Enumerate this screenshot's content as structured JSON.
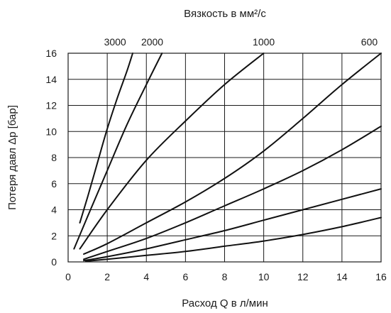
{
  "chart_data": {
    "type": "line",
    "title": "Вязкость в мм²/с",
    "xlabel": "Расход Q в л/мин",
    "ylabel": "Потеря давл Δр [бар]",
    "xlim": [
      0,
      16
    ],
    "ylim": [
      0,
      16
    ],
    "grid": true,
    "x_ticks": [
      "0",
      "2",
      "4",
      "6",
      "8",
      "10",
      "12",
      "14",
      "16"
    ],
    "y_ticks": [
      "0",
      "2",
      "4",
      "6",
      "8",
      "10",
      "12",
      "14",
      "16"
    ],
    "top_labels": [
      {
        "text": "3000",
        "x": 2.4
      },
      {
        "text": "2000",
        "x": 4.3
      },
      {
        "text": "1000",
        "x": 10.0
      },
      {
        "text": "600",
        "x": 15.4
      }
    ],
    "series": [
      {
        "points": [
          [
            0.6,
            3.0
          ],
          [
            1.0,
            5.0
          ],
          [
            1.5,
            7.6
          ],
          [
            2.0,
            10.2
          ],
          [
            2.5,
            12.5
          ],
          [
            3.0,
            14.6
          ],
          [
            3.3,
            16.0
          ]
        ]
      },
      {
        "points": [
          [
            0.3,
            1.0
          ],
          [
            1.0,
            3.5
          ],
          [
            2.0,
            7.0
          ],
          [
            3.0,
            10.5
          ],
          [
            4.0,
            13.6
          ],
          [
            4.8,
            16.0
          ]
        ]
      },
      {
        "points": [
          [
            0.6,
            1.0
          ],
          [
            2.0,
            4.0
          ],
          [
            4.0,
            7.8
          ],
          [
            6.0,
            10.8
          ],
          [
            8.0,
            13.6
          ],
          [
            10.0,
            16.0
          ]
        ]
      },
      {
        "points": [
          [
            0.8,
            0.6
          ],
          [
            2.0,
            1.4
          ],
          [
            4.0,
            3.0
          ],
          [
            6.0,
            4.6
          ],
          [
            8.0,
            6.4
          ],
          [
            10.0,
            8.5
          ],
          [
            12.0,
            11.0
          ],
          [
            14.0,
            13.6
          ],
          [
            16.0,
            16.0
          ]
        ]
      },
      {
        "points": [
          [
            0.8,
            0.2
          ],
          [
            2.0,
            0.8
          ],
          [
            4.0,
            1.8
          ],
          [
            6.0,
            3.0
          ],
          [
            8.0,
            4.3
          ],
          [
            10.0,
            5.6
          ],
          [
            12.0,
            7.0
          ],
          [
            14.0,
            8.6
          ],
          [
            16.0,
            10.4
          ]
        ]
      },
      {
        "points": [
          [
            0.8,
            0.1
          ],
          [
            2.0,
            0.4
          ],
          [
            4.0,
            1.0
          ],
          [
            6.0,
            1.7
          ],
          [
            8.0,
            2.4
          ],
          [
            10.0,
            3.2
          ],
          [
            12.0,
            4.0
          ],
          [
            14.0,
            4.8
          ],
          [
            16.0,
            5.6
          ]
        ]
      },
      {
        "points": [
          [
            0.9,
            0.05
          ],
          [
            2.0,
            0.2
          ],
          [
            4.0,
            0.5
          ],
          [
            6.0,
            0.8
          ],
          [
            8.0,
            1.2
          ],
          [
            10.0,
            1.6
          ],
          [
            12.0,
            2.1
          ],
          [
            14.0,
            2.7
          ],
          [
            16.0,
            3.4
          ]
        ]
      }
    ]
  }
}
